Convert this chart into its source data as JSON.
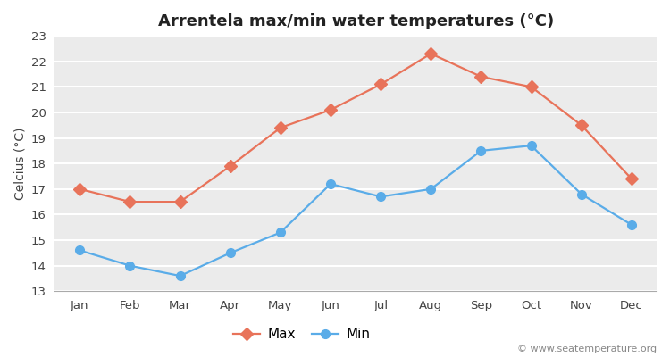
{
  "title": "Arrentela max/min water temperatures (°C)",
  "ylabel": "Celcius (°C)",
  "months": [
    "Jan",
    "Feb",
    "Mar",
    "Apr",
    "May",
    "Jun",
    "Jul",
    "Aug",
    "Sep",
    "Oct",
    "Nov",
    "Dec"
  ],
  "max_values": [
    17.0,
    16.5,
    16.5,
    17.9,
    19.4,
    20.1,
    21.1,
    22.3,
    21.4,
    21.0,
    19.5,
    17.4
  ],
  "min_values": [
    14.6,
    14.0,
    13.6,
    14.5,
    15.3,
    17.2,
    16.7,
    17.0,
    18.5,
    18.7,
    16.8,
    15.6
  ],
  "max_color": "#e8735a",
  "min_color": "#5aace8",
  "fig_bg_color": "#ffffff",
  "plot_bg_color": "#ebebeb",
  "grid_color": "#ffffff",
  "ylim": [
    13,
    23
  ],
  "yticks": [
    13,
    14,
    15,
    16,
    17,
    18,
    19,
    20,
    21,
    22,
    23
  ],
  "watermark": "© www.seatemperature.org",
  "legend_labels": [
    "Max",
    "Min"
  ],
  "title_fontsize": 13,
  "label_fontsize": 10,
  "tick_fontsize": 9.5,
  "line_width": 1.6,
  "marker_size": 7
}
